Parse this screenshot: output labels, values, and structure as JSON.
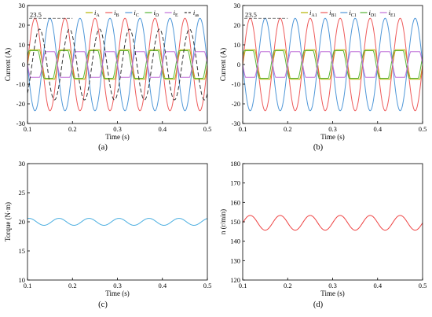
{
  "chart_data": [
    {
      "panel": "(a)",
      "type": "line",
      "xlabel": "Time (s)",
      "ylabel": "Current (A)",
      "xlim": [
        0.1,
        0.5
      ],
      "ylim": [
        -30,
        30
      ],
      "xticks": [
        0.1,
        0.2,
        0.3,
        0.4,
        0.5
      ],
      "yticks": [
        -30,
        -20,
        -10,
        0,
        10,
        20,
        30
      ],
      "grid": false,
      "legend": "top",
      "annotation": {
        "text": "23.5",
        "y": 23.5
      },
      "series": [
        {
          "name": "iA",
          "legend_main": "i",
          "legend_sub": "A",
          "color": "#b3b300",
          "kind": "trap",
          "amplitude": 7.5,
          "period": 0.0667,
          "phase": 0.0,
          "dash": false
        },
        {
          "name": "iB",
          "legend_main": "i",
          "legend_sub": "B",
          "color": "#ee5a5a",
          "kind": "sine",
          "amplitude": 23.5,
          "period": 0.0667,
          "phase": 0.0,
          "dash": false
        },
        {
          "name": "iC",
          "legend_main": "i",
          "legend_sub": "C",
          "color": "#4f97d8",
          "kind": "sine",
          "amplitude": 23.5,
          "period": 0.0667,
          "phase": 0.5,
          "dash": false
        },
        {
          "name": "iD",
          "legend_main": "i",
          "legend_sub": "D",
          "color": "#55b435",
          "kind": "trap",
          "amplitude": 7.0,
          "period": 0.0667,
          "phase": 0.05,
          "dash": false
        },
        {
          "name": "iE",
          "legend_main": "i",
          "legend_sub": "E",
          "color": "#c070d8",
          "kind": "trap",
          "amplitude": 6.5,
          "period": 0.0667,
          "phase": 0.5,
          "dash": false
        },
        {
          "name": "ias",
          "legend_main": "i",
          "legend_sub": "as",
          "color": "#333333",
          "kind": "sine",
          "amplitude": 18.0,
          "period": 0.0667,
          "phase": 0.85,
          "dash": true
        }
      ]
    },
    {
      "panel": "(b)",
      "type": "line",
      "xlabel": "Time (s)",
      "ylabel": "Current (A)",
      "xlim": [
        0.1,
        0.5
      ],
      "ylim": [
        -30,
        30
      ],
      "xticks": [
        0.1,
        0.2,
        0.3,
        0.4,
        0.5
      ],
      "yticks": [
        -30,
        -20,
        -10,
        0,
        10,
        20,
        30
      ],
      "grid": false,
      "legend": "top",
      "annotation": {
        "text": "23.5",
        "y": 23.5
      },
      "series": [
        {
          "name": "iA1",
          "legend_main": "i",
          "legend_sub": "A1",
          "color": "#b3b300",
          "kind": "trap",
          "amplitude": 7.5,
          "period": 0.0667,
          "phase": 0.0,
          "dash": false
        },
        {
          "name": "iB1",
          "legend_main": "i",
          "legend_sub": "B1",
          "color": "#ee5a5a",
          "kind": "sine",
          "amplitude": 23.5,
          "period": 0.0667,
          "phase": 0.0,
          "dash": false
        },
        {
          "name": "iC1",
          "legend_main": "i",
          "legend_sub": "C1",
          "color": "#4f97d8",
          "kind": "sine",
          "amplitude": 23.5,
          "period": 0.0667,
          "phase": 0.5,
          "dash": false
        },
        {
          "name": "iD1",
          "legend_main": "i",
          "legend_sub": "D1",
          "color": "#55b435",
          "kind": "trap",
          "amplitude": 7.0,
          "period": 0.0667,
          "phase": 0.05,
          "dash": false
        },
        {
          "name": "iE1",
          "legend_main": "i",
          "legend_sub": "E1",
          "color": "#c070d8",
          "kind": "trap",
          "amplitude": 6.5,
          "period": 0.0667,
          "phase": 0.5,
          "dash": false
        }
      ]
    },
    {
      "panel": "(c)",
      "type": "line",
      "xlabel": "Time (s)",
      "ylabel": "Torque (N·m)",
      "xlim": [
        0.1,
        0.5
      ],
      "ylim": [
        10,
        30
      ],
      "xticks": [
        0.1,
        0.2,
        0.3,
        0.4,
        0.5
      ],
      "yticks": [
        10,
        15,
        20,
        25,
        30
      ],
      "grid": false,
      "series": [
        {
          "name": "",
          "color": "#4aaee0",
          "kind": "sine",
          "mean": 20.0,
          "amplitude": 0.6,
          "period": 0.0667,
          "phase": 0.2,
          "dash": false
        }
      ]
    },
    {
      "panel": "(d)",
      "type": "line",
      "xlabel": "Time (s)",
      "ylabel": "n (r/min)",
      "xlim": [
        0.1,
        0.5
      ],
      "ylim": [
        120,
        180
      ],
      "xticks": [
        0.1,
        0.2,
        0.3,
        0.4,
        0.5
      ],
      "yticks": [
        120,
        130,
        140,
        150,
        160,
        170,
        180
      ],
      "grid": false,
      "series": [
        {
          "name": "",
          "color": "#ee4444",
          "kind": "sine",
          "mean": 149.5,
          "amplitude": 3.8,
          "period": 0.0667,
          "phase": 0.0,
          "dash": false
        }
      ]
    }
  ]
}
